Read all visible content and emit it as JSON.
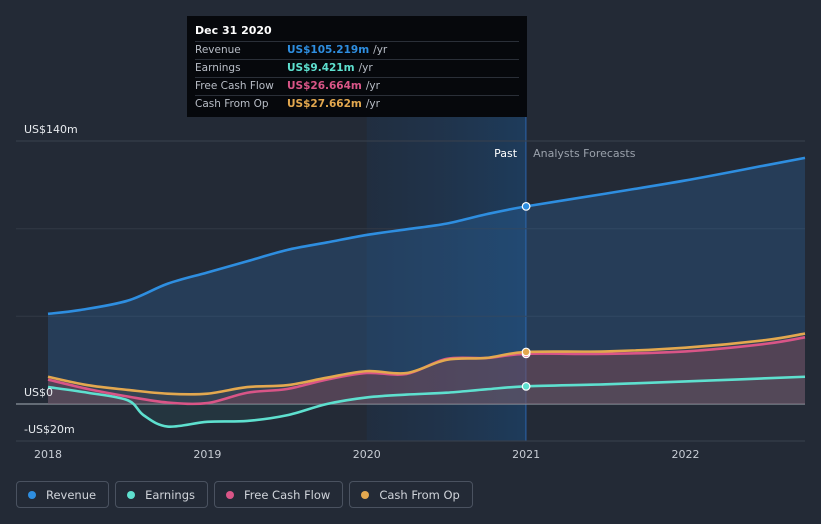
{
  "tooltip": {
    "date": "Dec 31 2020",
    "rows": [
      {
        "label": "Revenue",
        "value": "US$105.219m",
        "unit": "/yr",
        "color": "#2e8ee0"
      },
      {
        "label": "Earnings",
        "value": "US$9.421m",
        "unit": "/yr",
        "color": "#5ee0cf"
      },
      {
        "label": "Free Cash Flow",
        "value": "US$26.664m",
        "unit": "/yr",
        "color": "#d95587"
      },
      {
        "label": "Cash From Op",
        "value": "US$27.662m",
        "unit": "/yr",
        "color": "#e3a84f"
      }
    ]
  },
  "legend": [
    {
      "label": "Revenue",
      "color": "#2e8ee0"
    },
    {
      "label": "Earnings",
      "color": "#5ee0cf"
    },
    {
      "label": "Free Cash Flow",
      "color": "#d95587"
    },
    {
      "label": "Cash From Op",
      "color": "#e3a84f"
    }
  ],
  "chart_data": {
    "type": "line",
    "y_tick_labels": [
      "US$140m",
      "US$0",
      "-US$20m"
    ],
    "ylim": [
      -20,
      140
    ],
    "xlim": [
      2018,
      2022.75
    ],
    "x_tick_labels": [
      "2018",
      "2019",
      "2020",
      "2021",
      "2022"
    ],
    "x_ticks": [
      2018,
      2019,
      2020,
      2021,
      2022
    ],
    "past_label": "Past",
    "forecast_label": "Analysts Forecasts",
    "divider_x": 2021,
    "highlight_range": [
      2020,
      2021
    ],
    "grid": true,
    "series": [
      {
        "name": "Revenue",
        "color": "#2e8ee0",
        "points": [
          [
            2018,
            48
          ],
          [
            2018.2,
            50
          ],
          [
            2018.5,
            55
          ],
          [
            2018.75,
            64
          ],
          [
            2019,
            70
          ],
          [
            2019.25,
            76
          ],
          [
            2019.5,
            82
          ],
          [
            2019.75,
            86
          ],
          [
            2020,
            90
          ],
          [
            2020.25,
            93
          ],
          [
            2020.5,
            96
          ],
          [
            2020.75,
            101
          ],
          [
            2021,
            105.2
          ],
          [
            2021.5,
            112
          ],
          [
            2022,
            119
          ],
          [
            2022.5,
            127
          ],
          [
            2022.75,
            131
          ]
        ]
      },
      {
        "name": "Earnings",
        "color": "#5ee0cf",
        "points": [
          [
            2018,
            9
          ],
          [
            2018.25,
            6
          ],
          [
            2018.5,
            2
          ],
          [
            2018.6,
            -6
          ],
          [
            2018.75,
            -12
          ],
          [
            2019,
            -9.5
          ],
          [
            2019.25,
            -9
          ],
          [
            2019.5,
            -6
          ],
          [
            2019.75,
            0
          ],
          [
            2020,
            3.5
          ],
          [
            2020.25,
            5
          ],
          [
            2020.5,
            6
          ],
          [
            2020.75,
            7.8
          ],
          [
            2021,
            9.4
          ],
          [
            2021.5,
            10.5
          ],
          [
            2022,
            12
          ],
          [
            2022.75,
            14.5
          ]
        ]
      },
      {
        "name": "Free Cash Flow",
        "color": "#d95587",
        "points": [
          [
            2018,
            13
          ],
          [
            2018.25,
            8
          ],
          [
            2018.5,
            4
          ],
          [
            2018.75,
            0.8
          ],
          [
            2019,
            0.5
          ],
          [
            2019.25,
            6
          ],
          [
            2019.5,
            8
          ],
          [
            2019.75,
            13
          ],
          [
            2020,
            16.5
          ],
          [
            2020.25,
            16
          ],
          [
            2020.5,
            24
          ],
          [
            2020.75,
            24.5
          ],
          [
            2021,
            26.7
          ],
          [
            2021.5,
            26.7
          ],
          [
            2022,
            28
          ],
          [
            2022.5,
            32
          ],
          [
            2022.75,
            35.5
          ]
        ]
      },
      {
        "name": "Cash From Op",
        "color": "#e3a84f",
        "points": [
          [
            2018,
            14.5
          ],
          [
            2018.25,
            10
          ],
          [
            2018.5,
            7.5
          ],
          [
            2018.75,
            5.5
          ],
          [
            2019,
            5.5
          ],
          [
            2019.25,
            9
          ],
          [
            2019.5,
            10
          ],
          [
            2019.75,
            14
          ],
          [
            2020,
            17.5
          ],
          [
            2020.25,
            16.5
          ],
          [
            2020.5,
            23.5
          ],
          [
            2020.75,
            24.5
          ],
          [
            2021,
            27.7
          ],
          [
            2021.5,
            28
          ],
          [
            2022,
            30
          ],
          [
            2022.5,
            34
          ],
          [
            2022.75,
            37.5
          ]
        ]
      }
    ]
  }
}
